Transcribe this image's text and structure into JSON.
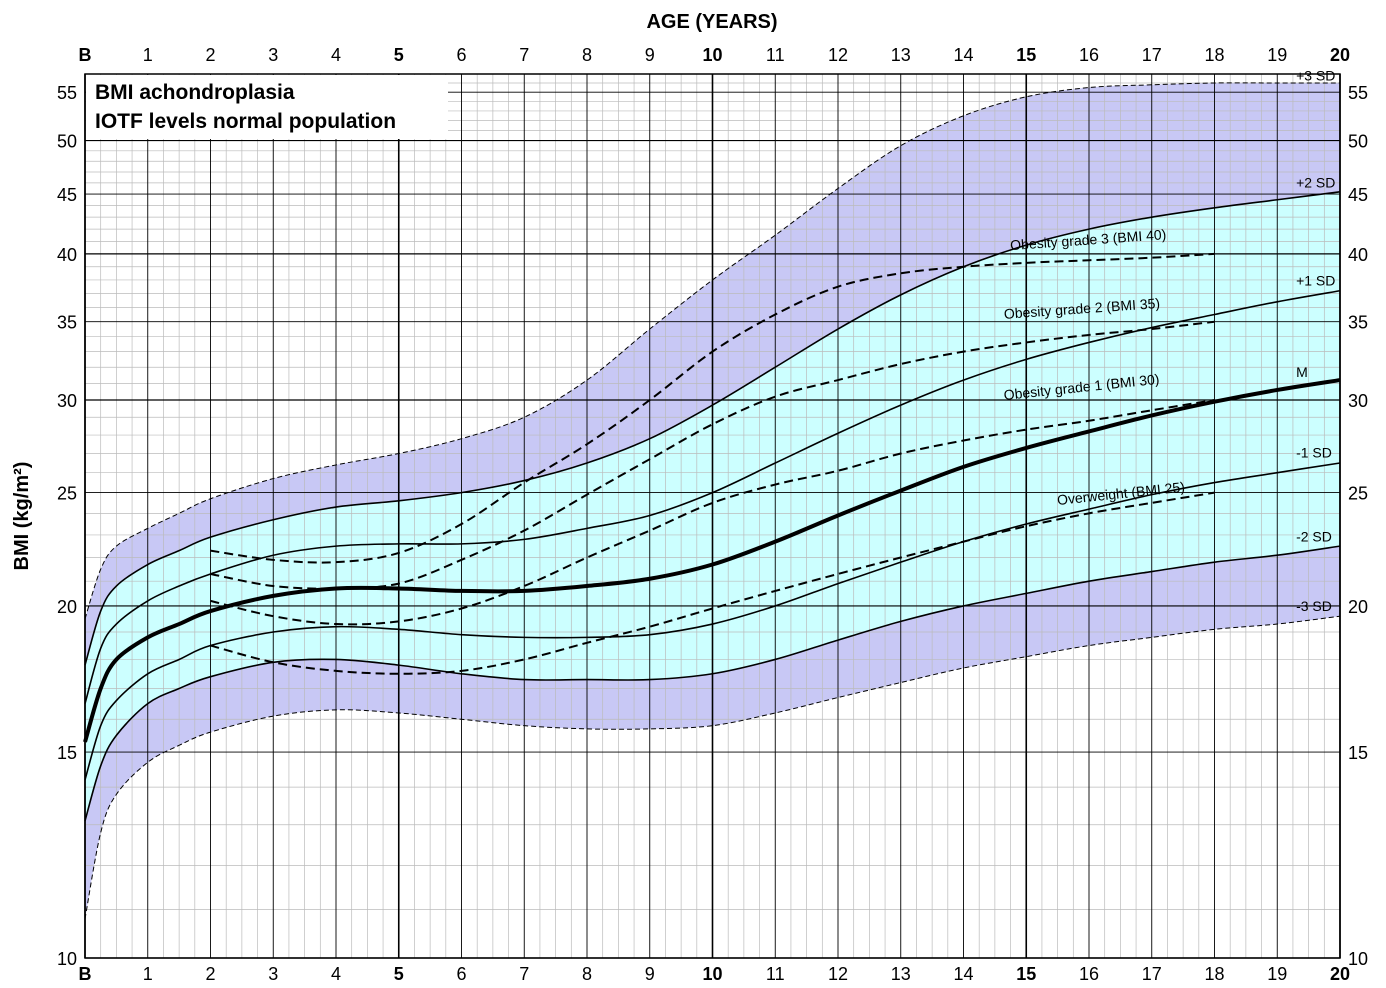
{
  "chart_data": {
    "type": "line",
    "title_lines": [
      "BMI achondroplasia",
      "IOTF levels normal population"
    ],
    "xlabel": "AGE (YEARS)",
    "ylabel": "BMI (kg/m²)",
    "xlim": [
      0,
      20
    ],
    "ylim": [
      10,
      57
    ],
    "y_scale": "log",
    "grid": true,
    "x_ticks": [
      {
        "value": 0,
        "label": "B",
        "bold": true
      },
      {
        "value": 1,
        "label": "1",
        "bold": false
      },
      {
        "value": 2,
        "label": "2",
        "bold": false
      },
      {
        "value": 3,
        "label": "3",
        "bold": false
      },
      {
        "value": 4,
        "label": "4",
        "bold": false
      },
      {
        "value": 5,
        "label": "5",
        "bold": true
      },
      {
        "value": 6,
        "label": "6",
        "bold": false
      },
      {
        "value": 7,
        "label": "7",
        "bold": false
      },
      {
        "value": 8,
        "label": "8",
        "bold": false
      },
      {
        "value": 9,
        "label": "9",
        "bold": false
      },
      {
        "value": 10,
        "label": "10",
        "bold": true
      },
      {
        "value": 11,
        "label": "11",
        "bold": false
      },
      {
        "value": 12,
        "label": "12",
        "bold": false
      },
      {
        "value": 13,
        "label": "13",
        "bold": false
      },
      {
        "value": 14,
        "label": "14",
        "bold": false
      },
      {
        "value": 15,
        "label": "15",
        "bold": true
      },
      {
        "value": 16,
        "label": "16",
        "bold": false
      },
      {
        "value": 17,
        "label": "17",
        "bold": false
      },
      {
        "value": 18,
        "label": "18",
        "bold": false
      },
      {
        "value": 19,
        "label": "19",
        "bold": false
      },
      {
        "value": 20,
        "label": "20",
        "bold": true
      }
    ],
    "y_ticks": [
      10,
      15,
      20,
      25,
      30,
      35,
      40,
      45,
      50,
      55
    ],
    "colors": {
      "outer_band": "#c8c8f5",
      "inner_band": "#ccffff",
      "grid_minor": "#bbbbbb",
      "grid_major": "#000000"
    },
    "x": [
      0,
      0.25,
      0.5,
      1,
      1.5,
      2,
      3,
      4,
      5,
      6,
      7,
      8,
      9,
      10,
      11,
      12,
      13,
      14,
      15,
      16,
      17,
      18,
      19,
      20
    ],
    "series": [
      {
        "name": "+3 SD",
        "style": "thin-dashed",
        "values": [
          19.5,
          21.5,
          22.5,
          23.3,
          24.0,
          24.7,
          25.7,
          26.4,
          27.0,
          27.8,
          29.0,
          31.2,
          34.5,
          38.0,
          41.5,
          45.5,
          49.5,
          52.5,
          54.5,
          55.5,
          55.8,
          56.0,
          56.0,
          56.0
        ]
      },
      {
        "name": "+2 SD",
        "style": "solid",
        "values": [
          17.8,
          19.8,
          20.8,
          21.7,
          22.3,
          22.9,
          23.7,
          24.3,
          24.6,
          25.0,
          25.6,
          26.5,
          27.8,
          29.7,
          32.0,
          34.5,
          36.9,
          39.0,
          40.7,
          42.0,
          43.0,
          43.8,
          44.5,
          45.2
        ]
      },
      {
        "name": "+1 SD",
        "style": "solid",
        "values": [
          16.5,
          18.4,
          19.3,
          20.2,
          20.8,
          21.3,
          22.1,
          22.5,
          22.6,
          22.6,
          22.8,
          23.3,
          23.9,
          25.0,
          26.5,
          28.1,
          29.7,
          31.2,
          32.5,
          33.6,
          34.6,
          35.5,
          36.4,
          37.2
        ]
      },
      {
        "name": "M",
        "style": "thick",
        "values": [
          15.3,
          17.0,
          18.0,
          18.8,
          19.3,
          19.8,
          20.4,
          20.7,
          20.7,
          20.6,
          20.6,
          20.8,
          21.1,
          21.7,
          22.7,
          23.9,
          25.1,
          26.3,
          27.3,
          28.2,
          29.1,
          29.9,
          30.6,
          31.2
        ]
      },
      {
        "name": "-1 SD",
        "style": "solid",
        "values": [
          14.2,
          15.8,
          16.6,
          17.5,
          18.0,
          18.5,
          19.0,
          19.2,
          19.1,
          18.9,
          18.8,
          18.8,
          18.9,
          19.3,
          20.0,
          20.9,
          21.8,
          22.7,
          23.5,
          24.2,
          24.9,
          25.5,
          26.0,
          26.5
        ]
      },
      {
        "name": "-2 SD",
        "style": "solid",
        "values": [
          13.1,
          14.6,
          15.5,
          16.5,
          17.0,
          17.4,
          17.9,
          18.0,
          17.8,
          17.5,
          17.3,
          17.3,
          17.3,
          17.5,
          18.0,
          18.7,
          19.4,
          20.0,
          20.5,
          21.0,
          21.4,
          21.8,
          22.1,
          22.5
        ]
      },
      {
        "name": "-3 SD",
        "style": "thin-dashed",
        "values": [
          10.8,
          12.8,
          13.8,
          14.7,
          15.2,
          15.6,
          16.1,
          16.3,
          16.2,
          16.0,
          15.8,
          15.7,
          15.7,
          15.8,
          16.2,
          16.7,
          17.2,
          17.7,
          18.1,
          18.5,
          18.8,
          19.1,
          19.3,
          19.6
        ]
      }
    ],
    "iotf_series": [
      {
        "name": "Obesity grade 3 (BMI 40)",
        "x": [
          2,
          3,
          4,
          5,
          6,
          7,
          8,
          9,
          10,
          11,
          12,
          13,
          14,
          15,
          16,
          17,
          18
        ],
        "values": [
          22.3,
          21.9,
          21.8,
          22.2,
          23.5,
          25.5,
          27.5,
          30.0,
          33.0,
          35.5,
          37.5,
          38.5,
          39.0,
          39.3,
          39.5,
          39.7,
          40.0
        ]
      },
      {
        "name": "Obesity grade 2 (BMI 35)",
        "x": [
          2,
          3,
          4,
          5,
          6,
          7,
          8,
          9,
          10,
          11,
          12,
          13,
          14,
          15,
          16,
          17,
          18
        ],
        "values": [
          21.3,
          20.8,
          20.7,
          20.9,
          21.9,
          23.2,
          24.9,
          26.7,
          28.6,
          30.2,
          31.2,
          32.2,
          33.0,
          33.6,
          34.1,
          34.5,
          35.0
        ]
      },
      {
        "name": "Obesity grade 1 (BMI 30)",
        "x": [
          2,
          3,
          4,
          5,
          6,
          7,
          8,
          9,
          10,
          11,
          12,
          13,
          14,
          15,
          16,
          17,
          18
        ],
        "values": [
          20.2,
          19.6,
          19.3,
          19.4,
          19.9,
          20.8,
          22.0,
          23.2,
          24.5,
          25.4,
          26.1,
          27.0,
          27.7,
          28.3,
          28.8,
          29.4,
          30.0
        ]
      },
      {
        "name": "Overweight (BMI 25)",
        "x": [
          2,
          3,
          4,
          5,
          6,
          7,
          8,
          9,
          10,
          11,
          12,
          13,
          14,
          15,
          16,
          17,
          18
        ],
        "values": [
          18.5,
          17.9,
          17.6,
          17.5,
          17.6,
          18.0,
          18.6,
          19.2,
          19.9,
          20.6,
          21.3,
          22.0,
          22.7,
          23.4,
          24.0,
          24.5,
          25.0
        ]
      }
    ],
    "curve_labels": [
      {
        "text": "+3 SD",
        "x": 19.3,
        "y": 56.3
      },
      {
        "text": "+2 SD",
        "x": 19.3,
        "y": 45.6
      },
      {
        "text": "+1 SD",
        "x": 19.3,
        "y": 37.6
      },
      {
        "text": "M",
        "x": 19.3,
        "y": 31.4
      },
      {
        "text": "-1 SD",
        "x": 19.3,
        "y": 26.8
      },
      {
        "text": "-2 SD",
        "x": 19.3,
        "y": 22.7
      },
      {
        "text": "-3 SD",
        "x": 19.3,
        "y": 19.8
      },
      {
        "text": "Obesity grade 3 (BMI 40)",
        "x": 14.75,
        "y": 40.3,
        "angle": -4
      },
      {
        "text": "Obesity grade 2 (BMI 35)",
        "x": 14.65,
        "y": 35.2,
        "angle": -4
      },
      {
        "text": "Obesity grade 1 (BMI 30)",
        "x": 14.65,
        "y": 30.0,
        "angle": -6
      },
      {
        "text": "Overweight (BMI 25)",
        "x": 15.5,
        "y": 24.4,
        "angle": -6
      }
    ]
  }
}
